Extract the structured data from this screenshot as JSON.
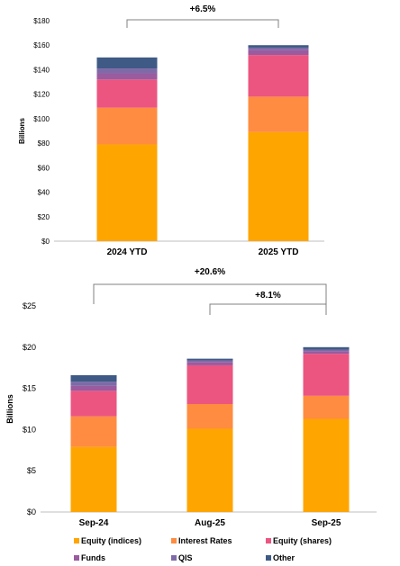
{
  "colors": {
    "Equity (indices)": "#FFA500",
    "Interest Rates": "#FF8C40",
    "Equity (shares)": "#EC5580",
    "Funds": "#9A5B9F",
    "QIS": "#7F6AA8",
    "Other": "#3E5A85"
  },
  "chart_data": [
    {
      "type": "bar",
      "stacked": true,
      "ylabel": "Billions",
      "ylim": [
        0,
        180
      ],
      "yticks": [
        "$0",
        "$20",
        "$40",
        "$60",
        "$80",
        "$100",
        "$120",
        "$140",
        "$160",
        "$180"
      ],
      "categories": [
        "2024 YTD",
        "2025 YTD"
      ],
      "series": [
        {
          "name": "Equity (indices)",
          "values": [
            79,
            89
          ]
        },
        {
          "name": "Interest Rates",
          "values": [
            30,
            29
          ]
        },
        {
          "name": "Equity (shares)",
          "values": [
            23,
            34
          ]
        },
        {
          "name": "Funds",
          "values": [
            5,
            4
          ]
        },
        {
          "name": "QIS",
          "values": [
            4,
            2
          ]
        },
        {
          "name": "Other",
          "values": [
            9,
            2
          ]
        }
      ],
      "annotations": [
        {
          "text": "+6.5%",
          "from": "2024 YTD",
          "to": "2025 YTD"
        }
      ],
      "grid": false
    },
    {
      "type": "bar",
      "stacked": true,
      "ylabel": "Billions",
      "ylim": [
        0,
        25
      ],
      "yticks": [
        "$0",
        "$5",
        "$10",
        "$15",
        "$20",
        "$25"
      ],
      "categories": [
        "Sep-24",
        "Aug-25",
        "Sep-25"
      ],
      "series": [
        {
          "name": "Equity (indices)",
          "values": [
            7.9,
            10.1,
            11.3
          ]
        },
        {
          "name": "Interest Rates",
          "values": [
            3.7,
            3.0,
            2.8
          ]
        },
        {
          "name": "Equity (shares)",
          "values": [
            3.1,
            4.7,
            5.1
          ]
        },
        {
          "name": "Funds",
          "values": [
            0.6,
            0.4,
            0.3
          ]
        },
        {
          "name": "QIS",
          "values": [
            0.5,
            0.2,
            0.2
          ]
        },
        {
          "name": "Other",
          "values": [
            0.8,
            0.2,
            0.3
          ]
        }
      ],
      "annotations": [
        {
          "text": "+20.6%",
          "from": "Sep-24",
          "to": "Sep-25"
        },
        {
          "text": "+8.1%",
          "from": "Aug-25",
          "to": "Sep-25"
        }
      ],
      "legend": {
        "position": "bottom",
        "items": [
          "Equity (indices)",
          "Interest Rates",
          "Equity (shares)",
          "Funds",
          "QIS",
          "Other"
        ]
      },
      "grid": false
    }
  ]
}
